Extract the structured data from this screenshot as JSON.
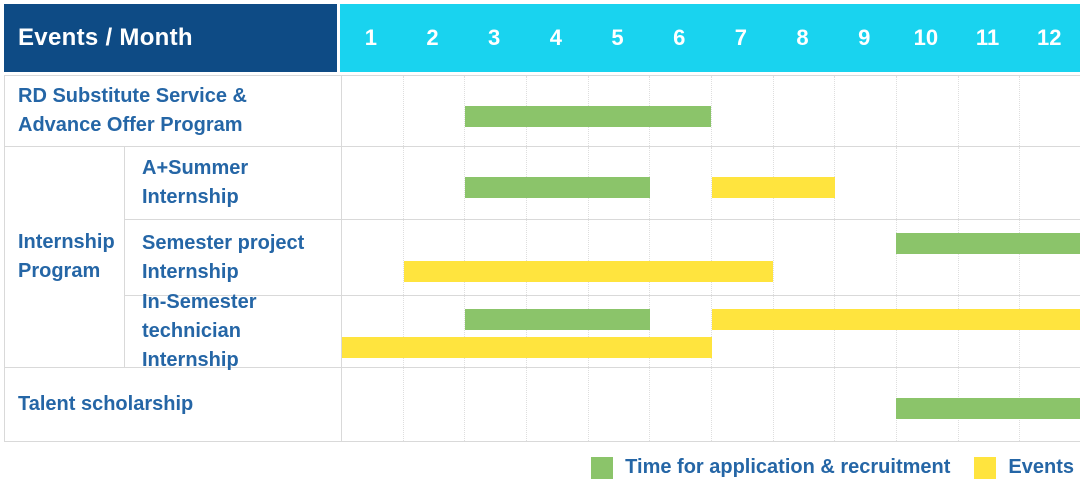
{
  "header": {
    "title": "Events / Month",
    "months": [
      "1",
      "2",
      "3",
      "4",
      "5",
      "6",
      "7",
      "8",
      "9",
      "10",
      "11",
      "12"
    ]
  },
  "group": {
    "label_lines": [
      "Internship",
      "Program"
    ]
  },
  "rows": [
    {
      "id": "rd-substitute-service",
      "label_lines": [
        "RD Substitute Service &",
        "Advance Offer Program"
      ],
      "indent": false,
      "bars": [
        {
          "color": "green",
          "start": 3,
          "end": 6,
          "lane": "single"
        }
      ]
    },
    {
      "id": "a-plus-summer-internship",
      "label_lines": [
        "A+Summer",
        "Internship"
      ],
      "indent": true,
      "bars": [
        {
          "color": "green",
          "start": 3,
          "end": 5,
          "lane": "single"
        },
        {
          "color": "yellow",
          "start": 7,
          "end": 8,
          "lane": "single"
        }
      ]
    },
    {
      "id": "semester-project-internship",
      "label_lines": [
        "Semester project",
        "Internship"
      ],
      "indent": true,
      "bars": [
        {
          "color": "green",
          "start": 10,
          "end": 12,
          "lane": "top"
        },
        {
          "color": "yellow",
          "start": 2,
          "end": 7,
          "lane": "bottom"
        }
      ]
    },
    {
      "id": "in-semester-technician-internship",
      "label_lines": [
        "In-Semester",
        "technician Internship"
      ],
      "indent": true,
      "bars": [
        {
          "color": "green",
          "start": 3,
          "end": 5,
          "lane": "top"
        },
        {
          "color": "yellow",
          "start": 7,
          "end": 12,
          "lane": "top"
        },
        {
          "color": "yellow",
          "start": 1,
          "end": 6,
          "lane": "bottom"
        }
      ]
    },
    {
      "id": "talent-scholarship",
      "label_lines": [
        "Talent scholarship"
      ],
      "indent": false,
      "bars": [
        {
          "color": "green",
          "start": 10,
          "end": 12,
          "lane": "single"
        }
      ]
    }
  ],
  "legend": [
    {
      "color": "green",
      "label": "Time for application & recruitment"
    },
    {
      "color": "yellow",
      "label": "Events"
    }
  ],
  "colors": {
    "header_navy": "#0e4b85",
    "header_cyan": "#19d3ef",
    "bar_green": "#8bc46a",
    "bar_yellow": "#ffe43e",
    "label_blue": "#2566a6",
    "grid_line": "#d9d9d9"
  },
  "chart_data": {
    "type": "gantt",
    "title": "Events / Month",
    "x_axis": {
      "label": "Month",
      "ticks": [
        1,
        2,
        3,
        4,
        5,
        6,
        7,
        8,
        9,
        10,
        11,
        12
      ]
    },
    "legend": [
      {
        "name": "Time for application & recruitment",
        "color": "#8bc46a"
      },
      {
        "name": "Events",
        "color": "#ffe43e"
      }
    ],
    "tasks": [
      {
        "name": "RD Substitute Service & Advance Offer Program",
        "group": null,
        "bars": [
          {
            "series": "Time for application & recruitment",
            "start_month": 3,
            "end_month": 6
          }
        ]
      },
      {
        "name": "A+Summer Internship",
        "group": "Internship Program",
        "bars": [
          {
            "series": "Time for application & recruitment",
            "start_month": 3,
            "end_month": 5
          },
          {
            "series": "Events",
            "start_month": 7,
            "end_month": 8
          }
        ]
      },
      {
        "name": "Semester project Internship",
        "group": "Internship Program",
        "bars": [
          {
            "series": "Time for application & recruitment",
            "start_month": 10,
            "end_month": 12
          },
          {
            "series": "Events",
            "start_month": 2,
            "end_month": 7
          }
        ]
      },
      {
        "name": "In-Semester technician Internship",
        "group": "Internship Program",
        "bars": [
          {
            "series": "Time for application & recruitment",
            "start_month": 3,
            "end_month": 5
          },
          {
            "series": "Events",
            "start_month": 7,
            "end_month": 12
          },
          {
            "series": "Events",
            "start_month": 1,
            "end_month": 6
          }
        ]
      },
      {
        "name": "Talent scholarship",
        "group": null,
        "bars": [
          {
            "series": "Time for application & recruitment",
            "start_month": 10,
            "end_month": 12
          }
        ]
      }
    ]
  }
}
